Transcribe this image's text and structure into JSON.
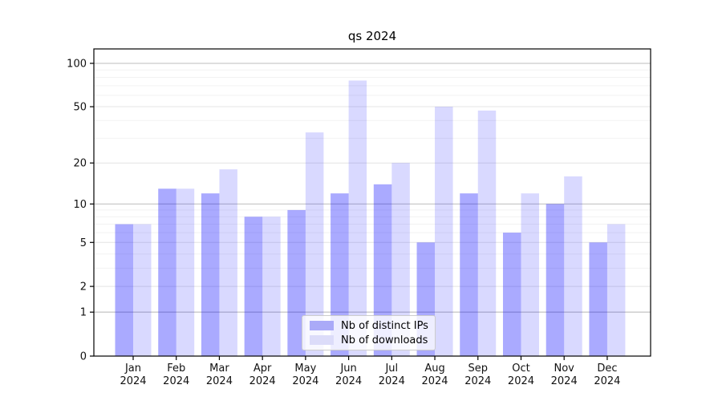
{
  "chart_data": {
    "type": "bar",
    "title": "qs 2024",
    "x_tick_months": [
      "Jan",
      "Feb",
      "Mar",
      "Apr",
      "May",
      "Jun",
      "Jul",
      "Aug",
      "Sep",
      "Oct",
      "Nov",
      "Dec"
    ],
    "x_tick_year": "2024",
    "series": [
      {
        "name": "Nb of distinct IPs",
        "values": [
          7,
          13,
          12,
          8,
          9,
          12,
          14,
          5,
          12,
          6,
          10,
          5
        ],
        "fill": "#0000ff",
        "fill_opacity": 0.335,
        "swatch": "#aaaaf8"
      },
      {
        "name": "Nb of downloads",
        "values": [
          7,
          13,
          18,
          8,
          33,
          76,
          20,
          50,
          47,
          12,
          16,
          7
        ],
        "fill": "#0000ff",
        "fill_opacity": 0.15,
        "swatch": "#dcdcf9"
      }
    ],
    "yscale": "log1p",
    "y_major_ticks": [
      0,
      1,
      2,
      5,
      10,
      20,
      50,
      100
    ],
    "y_decade_lines": [
      1,
      10,
      100
    ],
    "y_minor_lines": [
      3,
      4,
      6,
      7,
      8,
      9,
      30,
      40,
      60,
      70,
      80,
      90
    ],
    "ylim": [
      0,
      126
    ],
    "grid": true,
    "legend_position": "lower center",
    "colors": {
      "decade_grid": "#c9c9c9",
      "major_grid": "#e4e4e4",
      "minor_grid": "#f2f2f2",
      "axis": "#000000",
      "tick_label": "#111111"
    }
  }
}
